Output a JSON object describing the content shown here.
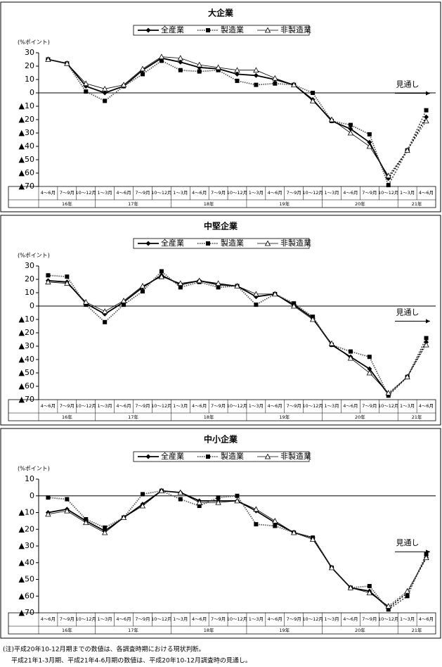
{
  "chart_data": [
    {
      "type": "line",
      "title": "大企業",
      "y_label": "(%ポイント)",
      "annotation": "見通し",
      "groups": [
        {
          "label": "16年",
          "categories": [
            "4～6月",
            "7～9月",
            "10～12月"
          ]
        },
        {
          "label": "17年",
          "categories": [
            "1～3月",
            "4～6月",
            "7～9月",
            "10～12月"
          ]
        },
        {
          "label": "18年",
          "categories": [
            "1～3月",
            "4～6月",
            "7～9月",
            "10～12月"
          ]
        },
        {
          "label": "19年",
          "categories": [
            "1～3月",
            "4～6月",
            "7～9月",
            "10～12月"
          ]
        },
        {
          "label": "20年",
          "categories": [
            "1～3月",
            "4～6月",
            "7～9月",
            "10～12月"
          ]
        },
        {
          "label": "21年",
          "categories": [
            "1～3月",
            "4～6月"
          ]
        }
      ],
      "series": [
        {
          "name": "全産業",
          "color": "#000000",
          "marker": "diamond",
          "values": [
            25,
            22,
            5,
            0,
            5,
            17,
            26,
            23,
            19,
            18,
            14,
            13,
            10,
            6,
            -5,
            -21,
            -27,
            -37,
            -64,
            -43,
            -18
          ]
        },
        {
          "name": "製造業",
          "color": "#000000",
          "marker": "square",
          "values": [
            25,
            22,
            1,
            -6,
            5,
            14,
            24,
            17,
            16,
            17,
            9,
            6,
            7,
            6,
            0,
            -21,
            -24,
            -31,
            -69,
            -43,
            -13
          ]
        },
        {
          "name": "非製造業",
          "color": "#000000",
          "marker": "triangle",
          "values": [
            25,
            22,
            7,
            3,
            6,
            18,
            27,
            26,
            21,
            19,
            17,
            17,
            11,
            6,
            -6,
            -20,
            -30,
            -40,
            -62,
            -43,
            -21
          ]
        }
      ],
      "ylim": [
        -70,
        30
      ],
      "yticks": [
        30,
        20,
        10,
        0,
        {
          "value": -10,
          "label": "▲10"
        },
        {
          "value": -20,
          "label": "▲20"
        },
        {
          "value": -30,
          "label": "▲30"
        },
        {
          "value": -40,
          "label": "▲40"
        },
        {
          "value": -50,
          "label": "▲50"
        },
        {
          "value": -60,
          "label": "▲60"
        },
        {
          "value": -70,
          "label": "▲70"
        }
      ],
      "grid": false
    },
    {
      "type": "line",
      "title": "中堅企業",
      "y_label": "(%ポイント)",
      "annotation": "見通し",
      "groups": [
        {
          "label": "16年",
          "categories": [
            "4～6月",
            "7～9月",
            "10～12月"
          ]
        },
        {
          "label": "17年",
          "categories": [
            "1～3月",
            "4～6月",
            "7～9月",
            "10～12月"
          ]
        },
        {
          "label": "18年",
          "categories": [
            "1～3月",
            "4～6月",
            "7～9月",
            "10～12月"
          ]
        },
        {
          "label": "19年",
          "categories": [
            "1～3月",
            "4～6月",
            "7～9月",
            "10～12月"
          ]
        },
        {
          "label": "20年",
          "categories": [
            "1～3月",
            "4～6月",
            "7～9月",
            "10～12月"
          ]
        },
        {
          "label": "21年",
          "categories": [
            "1～3月",
            "4～6月"
          ]
        }
      ],
      "series": [
        {
          "name": "全産業",
          "color": "#000000",
          "marker": "diamond",
          "values": [
            19,
            18,
            2,
            -6,
            3,
            14,
            23,
            16,
            19,
            16,
            15,
            7,
            9,
            1,
            -9,
            -29,
            -38,
            -47,
            -66,
            -53,
            -27
          ]
        },
        {
          "name": "製造業",
          "color": "#000000",
          "marker": "square",
          "values": [
            23,
            22,
            1,
            -12,
            1,
            11,
            26,
            14,
            18,
            14,
            15,
            1,
            9,
            2,
            -8,
            -29,
            -34,
            -38,
            -67,
            -53,
            -24
          ]
        },
        {
          "name": "非製造業",
          "color": "#000000",
          "marker": "triangle",
          "values": [
            18,
            17,
            3,
            -4,
            4,
            15,
            22,
            17,
            19,
            17,
            15,
            9,
            9,
            0,
            -10,
            -28,
            -39,
            -50,
            -65,
            -53,
            -29
          ]
        }
      ],
      "ylim": [
        -70,
        30
      ],
      "yticks": [
        30,
        20,
        10,
        0,
        {
          "value": -10,
          "label": "▲10"
        },
        {
          "value": -20,
          "label": "▲20"
        },
        {
          "value": -30,
          "label": "▲30"
        },
        {
          "value": -40,
          "label": "▲40"
        },
        {
          "value": -50,
          "label": "▲50"
        },
        {
          "value": -60,
          "label": "▲60"
        },
        {
          "value": -70,
          "label": "▲70"
        }
      ],
      "grid": false
    },
    {
      "type": "line",
      "title": "中小企業",
      "y_label": "(%ポイント)",
      "annotation": "見通し",
      "groups": [
        {
          "label": "16年",
          "categories": [
            "4～6月",
            "7～9月",
            "10～12月"
          ]
        },
        {
          "label": "17年",
          "categories": [
            "1～3月",
            "4～6月",
            "7～9月",
            "10～12月"
          ]
        },
        {
          "label": "18年",
          "categories": [
            "1～3月",
            "4～6月",
            "7～9月",
            "10～12月"
          ]
        },
        {
          "label": "19年",
          "categories": [
            "1～3月",
            "4～6月",
            "7～9月",
            "10～12月"
          ]
        },
        {
          "label": "20年",
          "categories": [
            "1～3月",
            "4～6月",
            "7～9月",
            "10～12月"
          ]
        },
        {
          "label": "21年",
          "categories": [
            "1～3月",
            "4～6月"
          ]
        }
      ],
      "series": [
        {
          "name": "全産業",
          "color": "#000000",
          "marker": "diamond",
          "values": [
            -10,
            -8,
            -15,
            -21,
            -13,
            -5,
            3,
            2,
            -3,
            -3,
            -3,
            -9,
            -16,
            -22,
            -25,
            -43,
            -55,
            -57,
            -67,
            -58,
            -37
          ]
        },
        {
          "name": "製造業",
          "color": "#000000",
          "marker": "square",
          "values": [
            -1,
            -2,
            -14,
            -19,
            -13,
            1,
            3,
            -2,
            -6,
            -1,
            0,
            -17,
            -18,
            -22,
            -25,
            -43,
            -55,
            -54,
            -68,
            -60,
            -35
          ]
        },
        {
          "name": "非製造業",
          "color": "#000000",
          "marker": "triangle",
          "values": [
            -11,
            -9,
            -16,
            -22,
            -13,
            -6,
            3,
            2,
            -4,
            -4,
            -3,
            -8,
            -15,
            -22,
            -26,
            -43,
            -55,
            -58,
            -66,
            -57,
            -37
          ]
        }
      ],
      "ylim": [
        -70,
        10
      ],
      "yticks": [
        10,
        0,
        {
          "value": -10,
          "label": "▲10"
        },
        {
          "value": -20,
          "label": "▲20"
        },
        {
          "value": -30,
          "label": "▲30"
        },
        {
          "value": -40,
          "label": "▲40"
        },
        {
          "value": -50,
          "label": "▲50"
        },
        {
          "value": -60,
          "label": "▲60"
        },
        {
          "value": -70,
          "label": "▲70"
        }
      ],
      "grid": false
    }
  ],
  "notes": [
    "(注)平成20年10-12月期までの数値は、各調査時期における現状判断。",
    "平成21年1-3月期、平成21年4-6月期の数値は、平成20年10-12月調査時の見通し。"
  ]
}
